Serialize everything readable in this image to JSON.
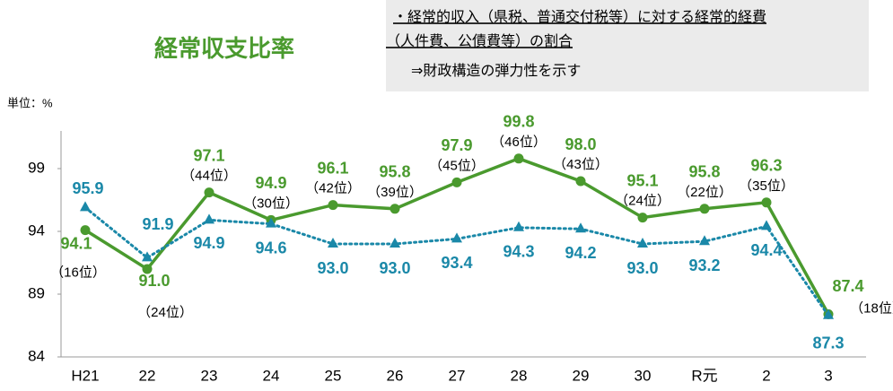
{
  "chart_data": {
    "type": "line",
    "title": "経常収支比率",
    "notes": [
      "・経常的収入（県税、普通交付税等）に対する経常的経費",
      "（人件費、公債費等）の割合",
      "⇒財政構造の弾力性を示す"
    ],
    "unit_label": "単位：%",
    "categories": [
      "H21",
      "22",
      "23",
      "24",
      "25",
      "26",
      "27",
      "28",
      "29",
      "30",
      "R元",
      "2",
      "3"
    ],
    "ylim": [
      84,
      102
    ],
    "yticks": [
      84,
      89,
      94,
      99
    ],
    "series": [
      {
        "color": "#4a9a2e",
        "style": "solid",
        "values": [
          94.1,
          91.0,
          97.1,
          94.9,
          96.1,
          95.8,
          97.9,
          99.8,
          98.0,
          95.1,
          95.8,
          96.3,
          87.4
        ],
        "value_labels": [
          "94.1",
          "91.0",
          "97.1",
          "94.9",
          "96.1",
          "95.8",
          "97.9",
          "99.8",
          "98.0",
          "95.1",
          "95.8",
          "96.3",
          "87.4"
        ],
        "rank_labels": [
          "（16位）",
          "（24位）",
          "（44位）",
          "（30位）",
          "（42位）",
          "（39位）",
          "（45位）",
          "（46位）",
          "（43位）",
          "（24位）",
          "（22位）",
          "（35位）",
          "（18位）"
        ]
      },
      {
        "color": "#1a88a8",
        "style": "dotted",
        "values": [
          95.9,
          91.9,
          94.9,
          94.6,
          93.0,
          93.0,
          93.4,
          94.3,
          94.2,
          93.0,
          93.2,
          94.4,
          87.3
        ],
        "value_labels": [
          "95.9",
          "91.9",
          "94.9",
          "94.6",
          "93.0",
          "93.0",
          "93.4",
          "94.3",
          "94.2",
          "93.0",
          "93.2",
          "94.4",
          "87.3"
        ]
      }
    ]
  }
}
